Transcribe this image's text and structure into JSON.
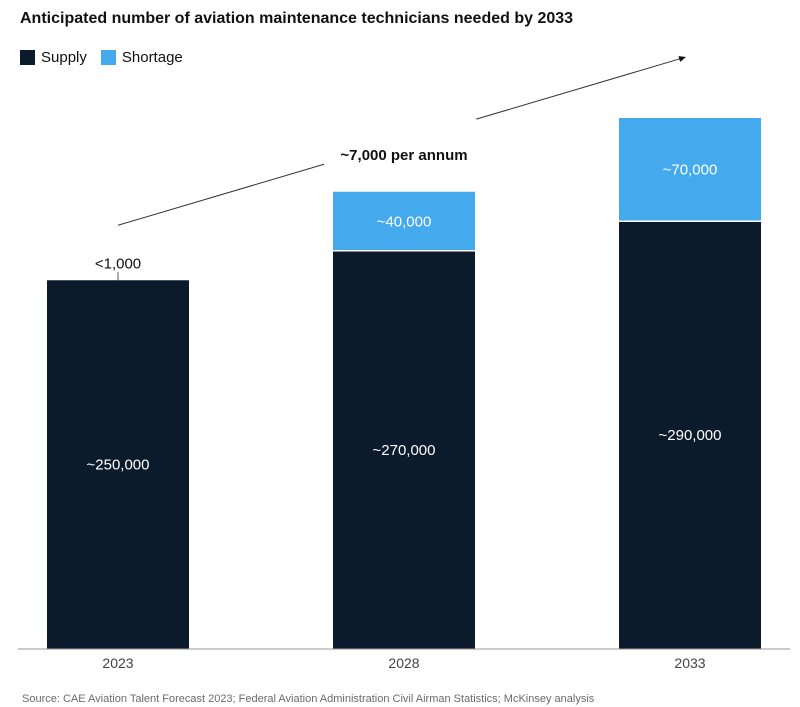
{
  "chart_data": {
    "type": "bar",
    "stacked": true,
    "title": "Anticipated number of aviation maintenance technicians needed by 2033",
    "categories": [
      "2023",
      "2028",
      "2033"
    ],
    "series": [
      {
        "name": "Supply",
        "color": "#0b1b2b",
        "values": [
          250000,
          270000,
          290000
        ],
        "labels": [
          "~250,000",
          "~270,000",
          "~290,000"
        ]
      },
      {
        "name": "Shortage",
        "color": "#45a9ee",
        "values": [
          1000,
          40000,
          70000
        ],
        "labels": [
          "<1,000",
          "~40,000",
          "~70,000"
        ]
      }
    ],
    "ylim": [
      0,
      360000
    ],
    "grid": false,
    "legend_position": "top-left",
    "annotation": "~7,000 per annum",
    "source": "Source: CAE Aviation Talent Forecast 2023; Federal Aviation Administration Civil Airman Statistics; McKinsey analysis"
  }
}
